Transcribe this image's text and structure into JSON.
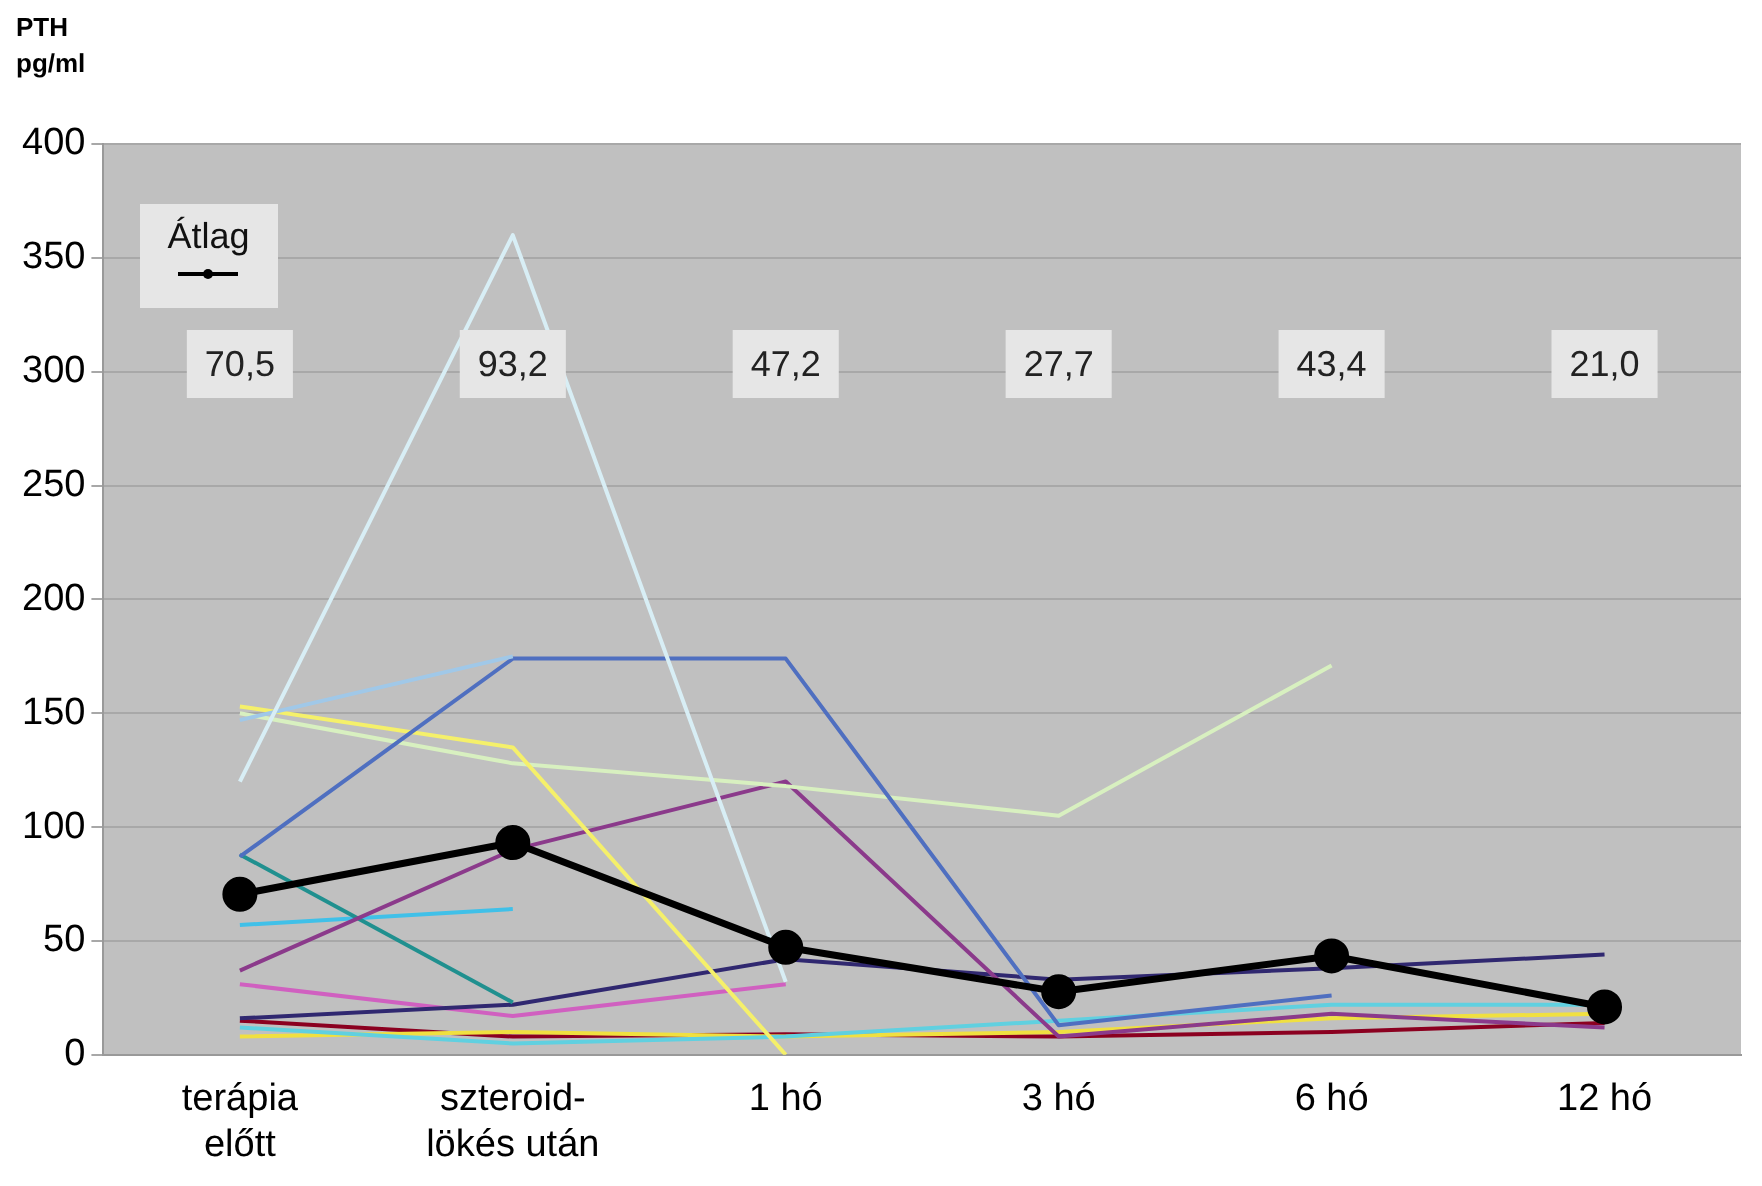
{
  "chart_data": {
    "type": "line",
    "ylabel": "PTH\npg/ml",
    "categories": [
      "terápia\nelőtt",
      "szteroid-\nlökés után",
      "1 hó",
      "3 hó",
      "6 hó",
      "12 hó"
    ],
    "ylim": [
      0,
      400
    ],
    "yticks": [
      0,
      50,
      100,
      150,
      200,
      250,
      300,
      350,
      400
    ],
    "grid": "y",
    "legend": "top left",
    "marker": "none",
    "series": [
      {
        "color": "#d8eef5",
        "values": [
          120,
          360,
          32,
          null,
          null,
          null
        ]
      },
      {
        "color": "#a0c8e8",
        "values": [
          147,
          175,
          null,
          null,
          null,
          null
        ]
      },
      {
        "color": "#4f6fc0",
        "values": [
          87,
          174,
          174,
          13,
          26,
          null
        ]
      },
      {
        "color": "#f5f06a",
        "values": [
          153,
          135,
          0,
          null,
          null,
          null
        ]
      },
      {
        "color": "#d8f0c0",
        "values": [
          150,
          128,
          118,
          105,
          171,
          null
        ]
      },
      {
        "color": "#8b3a8b",
        "values": [
          37,
          90,
          120,
          8,
          18,
          12
        ]
      },
      {
        "color": "#20908f",
        "values": [
          88,
          23,
          null,
          null,
          null,
          null
        ]
      },
      {
        "color": "#302870",
        "values": [
          16,
          22,
          42,
          33,
          38,
          44
        ]
      },
      {
        "color": "#40c0e8",
        "values": [
          57,
          64,
          null,
          null,
          null,
          null
        ]
      },
      {
        "color": "#d060c0",
        "values": [
          31,
          17,
          31,
          null,
          null,
          null
        ]
      },
      {
        "color": "#60d0e0",
        "values": [
          12,
          5,
          8,
          15,
          22,
          22
        ]
      },
      {
        "color": "#f0e040",
        "values": [
          8,
          10,
          8,
          10,
          16,
          18
        ]
      },
      {
        "color": "#8b0020",
        "values": [
          15,
          8,
          9,
          8,
          10,
          14
        ]
      },
      {
        "name": "Átlag",
        "color": "#000000",
        "marker": "circle",
        "values": [
          70.5,
          93.2,
          47.2,
          27.7,
          43.4,
          21.0
        ]
      }
    ],
    "annotations": [
      "70,5",
      "93,2",
      "47,2",
      "27,7",
      "43,4",
      "21,0"
    ]
  }
}
